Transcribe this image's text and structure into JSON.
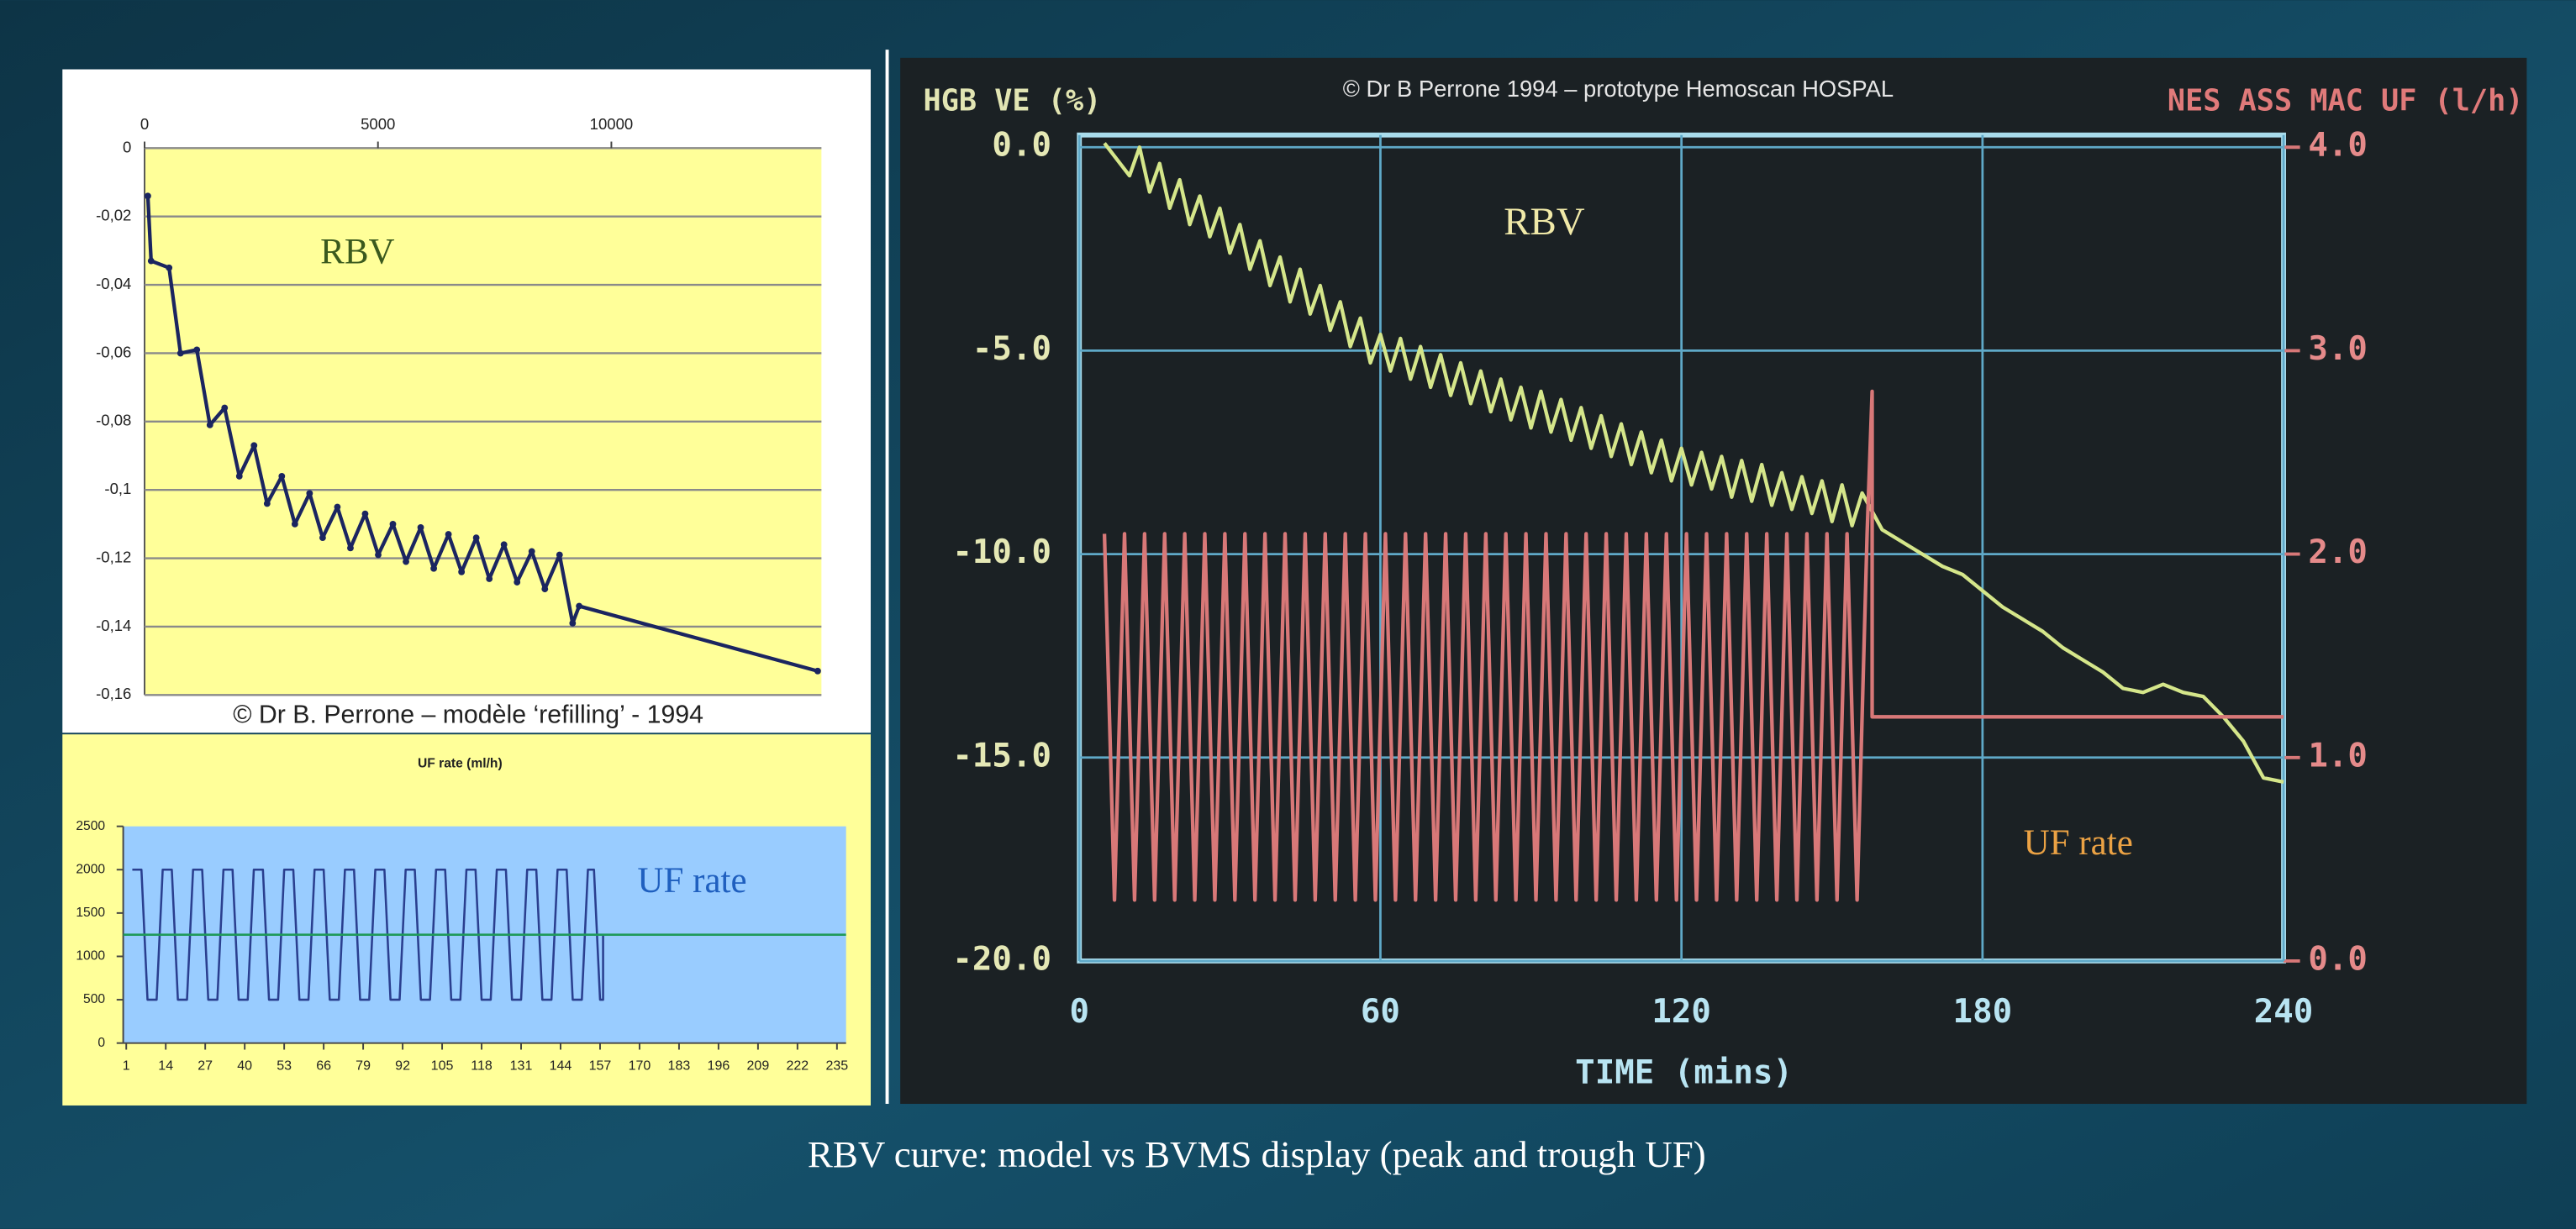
{
  "caption": "RBV curve: model vs BVMS display (peak and trough UF)",
  "chart_data": [
    {
      "type": "line",
      "annotation": "© Dr B. Perrone  – modèle ‘refilling’  - 1994",
      "xlim": [
        0,
        14500
      ],
      "xticks": [
        0,
        5000,
        10000
      ],
      "ylim": [
        -0.16,
        0
      ],
      "yticks": [
        0,
        {
          "value": -0.02,
          "label": "-0,02"
        },
        {
          "value": -0.04,
          "label": "-0,04"
        },
        {
          "value": -0.06,
          "label": "-0,06"
        },
        {
          "value": -0.08,
          "label": "-0,08"
        },
        {
          "value": -0.1,
          "label": "-0,1"
        },
        {
          "value": -0.12,
          "label": "-0,12"
        },
        {
          "value": -0.14,
          "label": "-0,14"
        },
        {
          "value": -0.16,
          "label": "-0,16"
        }
      ],
      "grid": "y",
      "markers": true,
      "series": [
        {
          "name": "RBV",
          "color": "#1b2560",
          "x": [
            70,
            140,
            525,
            770,
            1120,
            1400,
            1715,
            2030,
            2345,
            2625,
            2940,
            3220,
            3535,
            3815,
            4130,
            4410,
            4725,
            5005,
            5320,
            5600,
            5915,
            6195,
            6510,
            6790,
            7105,
            7385,
            7700,
            7980,
            8295,
            8575,
            8890,
            9170,
            9310,
            14420
          ],
          "values": [
            -0.014,
            -0.033,
            -0.035,
            -0.06,
            -0.059,
            -0.081,
            -0.076,
            -0.096,
            -0.087,
            -0.104,
            -0.096,
            -0.11,
            -0.101,
            -0.114,
            -0.105,
            -0.117,
            -0.107,
            -0.119,
            -0.11,
            -0.121,
            -0.111,
            -0.123,
            -0.113,
            -0.124,
            -0.114,
            -0.126,
            -0.116,
            -0.127,
            -0.118,
            -0.129,
            -0.119,
            -0.139,
            -0.134,
            -0.153
          ]
        }
      ]
    },
    {
      "type": "line",
      "title": "UF rate (ml/h)",
      "xlim": [
        0,
        238
      ],
      "xticks": [
        1,
        14,
        27,
        40,
        53,
        66,
        79,
        92,
        105,
        118,
        131,
        144,
        157,
        170,
        183,
        196,
        209,
        222,
        235
      ],
      "ylim": [
        0,
        2500
      ],
      "yticks": [
        0,
        500,
        1000,
        1500,
        2000,
        2500
      ],
      "grid": false,
      "series": [
        {
          "name": "UF rate",
          "color": "#2a3f8f",
          "x": [
            3,
            6,
            8,
            11,
            13,
            16,
            18,
            21,
            23,
            26,
            28,
            31,
            33,
            36,
            38,
            41,
            43,
            46,
            48,
            51,
            53,
            56,
            58,
            61,
            63,
            66,
            68,
            71,
            73,
            76,
            78,
            81,
            83,
            86,
            88,
            91,
            93,
            96,
            98,
            101,
            103,
            106,
            108,
            111,
            113,
            116,
            118,
            121,
            123,
            126,
            128,
            131,
            133,
            136,
            138,
            141,
            143,
            146,
            148,
            151,
            153,
            155,
            157,
            158,
            158
          ],
          "values": [
            2000,
            2000,
            500,
            500,
            2000,
            2000,
            500,
            500,
            2000,
            2000,
            500,
            500,
            2000,
            2000,
            500,
            500,
            2000,
            2000,
            500,
            500,
            2000,
            2000,
            500,
            500,
            2000,
            2000,
            500,
            500,
            2000,
            2000,
            500,
            500,
            2000,
            2000,
            500,
            500,
            2000,
            2000,
            500,
            500,
            2000,
            2000,
            500,
            500,
            2000,
            2000,
            500,
            500,
            2000,
            2000,
            500,
            500,
            2000,
            2000,
            500,
            500,
            2000,
            2000,
            500,
            500,
            2000,
            2000,
            500,
            500,
            1250
          ]
        },
        {
          "color": "#1f9a5a",
          "x": [
            0,
            238
          ],
          "values": [
            1250,
            1250
          ]
        }
      ]
    },
    {
      "type": "line",
      "annotation": "© Dr B Perrone 1994 – prototype Hemoscan HOSPAL",
      "xlabel": "TIME (mins)",
      "ylabel": "HGB VE (%)",
      "y2label": "NES ASS MAC UF (l/h)",
      "xlim": [
        0,
        240
      ],
      "xticks": [
        0,
        60,
        120,
        180,
        240
      ],
      "ylim": [
        -20,
        0.3
      ],
      "yticks": [
        {
          "value": 0,
          "label": "0.0"
        },
        {
          "value": -5,
          "label": "-5.0"
        },
        {
          "value": -10,
          "label": "-10.0"
        },
        {
          "value": -15,
          "label": "-15.0"
        },
        {
          "value": -20,
          "label": "-20.0"
        }
      ],
      "y2lim": [
        0,
        4.06
      ],
      "y2ticks": [
        {
          "value": 0,
          "label": "0.0"
        },
        {
          "value": 1,
          "label": "1.0"
        },
        {
          "value": 2,
          "label": "2.0"
        },
        {
          "value": 3,
          "label": "3.0"
        },
        {
          "value": 4,
          "label": "4.0"
        }
      ],
      "grid": "both",
      "series": [
        {
          "name": "RBV",
          "color": "#d5e68a",
          "x": [
            5,
            10,
            12,
            14,
            16,
            18,
            20,
            22,
            24,
            26,
            28,
            30,
            32,
            34,
            36,
            38,
            40,
            42,
            44,
            46,
            48,
            50,
            52,
            54,
            56,
            58,
            60,
            62,
            64,
            66,
            68,
            70,
            72,
            74,
            76,
            78,
            80,
            82,
            84,
            86,
            88,
            90,
            92,
            94,
            96,
            98,
            100,
            102,
            104,
            106,
            108,
            110,
            112,
            114,
            116,
            118,
            120,
            122,
            124,
            126,
            128,
            130,
            132,
            134,
            136,
            138,
            140,
            142,
            144,
            146,
            148,
            150,
            152,
            154,
            156,
            160,
            164,
            168,
            172,
            176,
            180,
            184,
            188,
            192,
            196,
            200,
            204,
            208,
            212,
            216,
            220,
            224,
            228,
            232,
            236,
            240
          ],
          "values": [
            0.1,
            -0.7,
            0.0,
            -1.1,
            -0.4,
            -1.5,
            -0.8,
            -1.9,
            -1.2,
            -2.2,
            -1.5,
            -2.6,
            -1.9,
            -3.0,
            -2.3,
            -3.4,
            -2.7,
            -3.8,
            -3.0,
            -4.1,
            -3.4,
            -4.5,
            -3.8,
            -4.9,
            -4.2,
            -5.3,
            -4.6,
            -5.5,
            -4.7,
            -5.7,
            -4.9,
            -5.9,
            -5.1,
            -6.1,
            -5.3,
            -6.3,
            -5.5,
            -6.5,
            -5.7,
            -6.7,
            -5.9,
            -6.9,
            -6.0,
            -7.0,
            -6.2,
            -7.2,
            -6.4,
            -7.4,
            -6.6,
            -7.6,
            -6.8,
            -7.8,
            -7.0,
            -8.0,
            -7.2,
            -8.2,
            -7.4,
            -8.3,
            -7.5,
            -8.4,
            -7.6,
            -8.6,
            -7.7,
            -8.7,
            -7.8,
            -8.8,
            -8.0,
            -8.9,
            -8.1,
            -9.0,
            -8.2,
            -9.2,
            -8.3,
            -9.3,
            -8.5,
            -9.4,
            -9.7,
            -10.0,
            -10.3,
            -10.5,
            -10.9,
            -11.3,
            -11.6,
            -11.9,
            -12.3,
            -12.6,
            -12.9,
            -13.3,
            -13.4,
            -13.2,
            -13.4,
            -13.5,
            -14.0,
            -14.6,
            -15.5,
            -15.6
          ]
        },
        {
          "name": "UF rate",
          "color": "#d87878",
          "axis": "y2",
          "x": [
            5,
            7,
            9,
            11,
            13,
            15,
            17,
            19,
            21,
            23,
            25,
            27,
            29,
            31,
            33,
            35,
            37,
            39,
            41,
            43,
            45,
            47,
            49,
            51,
            53,
            55,
            57,
            59,
            61,
            63,
            65,
            67,
            69,
            71,
            73,
            75,
            77,
            79,
            81,
            83,
            85,
            87,
            89,
            91,
            93,
            95,
            97,
            99,
            101,
            103,
            105,
            107,
            109,
            111,
            113,
            115,
            117,
            119,
            121,
            123,
            125,
            127,
            129,
            131,
            133,
            135,
            137,
            139,
            141,
            143,
            145,
            147,
            149,
            151,
            153,
            155,
            157,
            158,
            158,
            240
          ],
          "values": [
            2.1,
            0.3,
            2.1,
            0.3,
            2.1,
            0.3,
            2.1,
            0.3,
            2.1,
            0.3,
            2.1,
            0.3,
            2.1,
            0.3,
            2.1,
            0.3,
            2.1,
            0.3,
            2.1,
            0.3,
            2.1,
            0.3,
            2.1,
            0.3,
            2.1,
            0.3,
            2.1,
            0.3,
            2.1,
            0.3,
            2.1,
            0.3,
            2.1,
            0.3,
            2.1,
            0.3,
            2.1,
            0.3,
            2.1,
            0.3,
            2.1,
            0.3,
            2.1,
            0.3,
            2.1,
            0.3,
            2.1,
            0.3,
            2.1,
            0.3,
            2.1,
            0.3,
            2.1,
            0.3,
            2.1,
            0.3,
            2.1,
            0.3,
            2.1,
            0.3,
            2.1,
            0.3,
            2.1,
            0.3,
            2.1,
            0.3,
            2.1,
            0.3,
            2.1,
            0.3,
            2.1,
            0.3,
            2.1,
            0.3,
            2.1,
            0.3,
            2.1,
            2.8,
            1.2,
            1.2
          ]
        }
      ]
    }
  ]
}
